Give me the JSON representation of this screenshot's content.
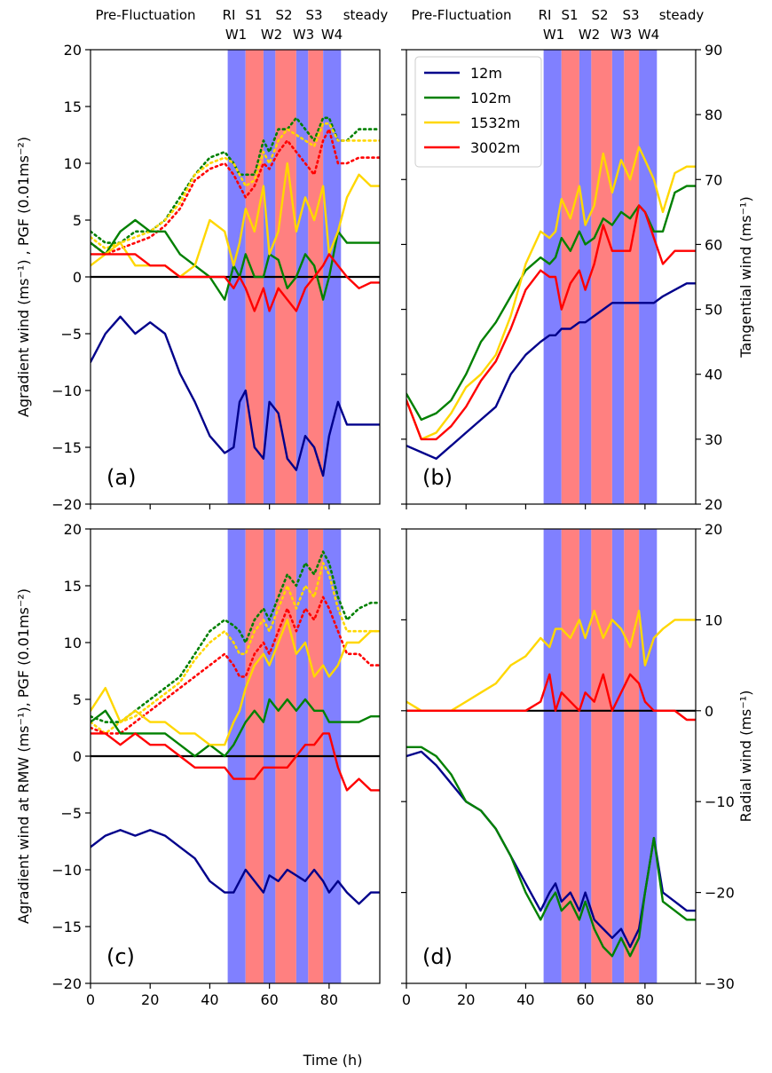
{
  "colors": {
    "12m": "#00008b",
    "102m": "#008000",
    "1532m": "#ffd700",
    "3002m": "#ff0000",
    "wind_band": "#8080ff",
    "strong_band": "#ff8080"
  },
  "chart_data": {
    "type": "line",
    "xlabel": "Time (h)",
    "xlim": [
      0,
      97
    ],
    "xticks": [
      0,
      20,
      40,
      60,
      80
    ],
    "legend": {
      "placement": "top-left of panel (b)",
      "entries": [
        "12m",
        "102m",
        "1532m",
        "3002m"
      ]
    },
    "phase_labels_top": [
      "Pre-Fluctuation",
      "RI",
      "S1",
      "S2",
      "S3",
      "steady"
    ],
    "phase_labels_bottom": [
      "W1",
      "W2",
      "W3",
      "W4"
    ],
    "bands": [
      {
        "from": 46,
        "to": 52,
        "kind": "W"
      },
      {
        "from": 52,
        "to": 58,
        "kind": "S"
      },
      {
        "from": 58,
        "to": 62,
        "kind": "W"
      },
      {
        "from": 62,
        "to": 69,
        "kind": "S"
      },
      {
        "from": 69,
        "to": 73,
        "kind": "W"
      },
      {
        "from": 73,
        "to": 78,
        "kind": "S"
      },
      {
        "from": 78,
        "to": 84,
        "kind": "W"
      }
    ],
    "panels": [
      {
        "id": "a",
        "tag": "(a)",
        "ylabel": "Agradient wind (ms⁻¹) , PGF (0.01ms⁻²)",
        "ylim": [
          -20,
          20
        ],
        "yticks": [
          -20,
          -15,
          -10,
          -5,
          0,
          5,
          10,
          15,
          20
        ],
        "yaxis_side": "left",
        "zero_line": true,
        "x": [
          0,
          5,
          10,
          15,
          20,
          25,
          30,
          35,
          40,
          45,
          48,
          50,
          52,
          55,
          58,
          60,
          63,
          66,
          69,
          72,
          75,
          78,
          80,
          83,
          86,
          90,
          94,
          97
        ],
        "series": [
          {
            "name": "12m",
            "style": "solid",
            "values": [
              -7.5,
              -5,
              -3.5,
              -5,
              -4,
              -5,
              -8.5,
              -11,
              -14,
              -15.5,
              -15,
              -11,
              -10,
              -15,
              -16,
              -11,
              -12,
              -16,
              -17,
              -14,
              -15,
              -17.5,
              -14,
              -11,
              -13,
              -13,
              -13,
              -13
            ]
          },
          {
            "name": "102m",
            "style": "solid",
            "values": [
              3,
              2,
              4,
              5,
              4,
              4,
              2,
              1,
              0,
              -2,
              1,
              0,
              2,
              0,
              0,
              2,
              1.5,
              -1,
              0,
              2,
              1,
              -2,
              0,
              4,
              3,
              3,
              3,
              3
            ]
          },
          {
            "name": "1532m",
            "style": "solid",
            "values": [
              1,
              2,
              3,
              1,
              1,
              1,
              0,
              1,
              5,
              4,
              1,
              3,
              6,
              4,
              8,
              2,
              4,
              10,
              4,
              7,
              5,
              8,
              2,
              4,
              7,
              9,
              8,
              8
            ]
          },
          {
            "name": "3002m",
            "style": "solid",
            "values": [
              2,
              2,
              2,
              2,
              1,
              1,
              0,
              0,
              0,
              0,
              -1,
              0,
              -1,
              -3,
              -1,
              -3,
              -1,
              -2,
              -3,
              -1,
              0,
              1,
              2,
              1,
              0,
              -1,
              -0.5,
              -0.5
            ]
          },
          {
            "name": "102m",
            "style": "dotted",
            "values": [
              4,
              3,
              3,
              4,
              4,
              5,
              7,
              9,
              10.5,
              11,
              10,
              9,
              9,
              9,
              12,
              11,
              13,
              13,
              14,
              13,
              12,
              14,
              14,
              12,
              12,
              13,
              13,
              13
            ]
          },
          {
            "name": "1532m",
            "style": "dotted",
            "values": [
              3.5,
              2.5,
              3,
              3.5,
              4,
              5,
              6.5,
              9,
              10,
              10.5,
              10,
              9,
              8,
              8.5,
              11,
              10,
              12,
              13,
              12.5,
              12,
              11.5,
              13.5,
              13.5,
              12,
              12,
              12,
              12,
              12
            ]
          },
          {
            "name": "3002m",
            "style": "dotted",
            "values": [
              3,
              2,
              2.5,
              3,
              3.5,
              4.5,
              6,
              8.5,
              9.5,
              10,
              9,
              8,
              7,
              8,
              10,
              9.5,
              11,
              12,
              11,
              10,
              9,
              12,
              13,
              10,
              10,
              10.5,
              10.5,
              10.5
            ]
          }
        ]
      },
      {
        "id": "b",
        "tag": "(b)",
        "ylabel": "Tangential wind (ms⁻¹)",
        "ylim": [
          20,
          90
        ],
        "yticks": [
          20,
          30,
          40,
          50,
          60,
          70,
          80,
          90
        ],
        "yaxis_side": "right",
        "zero_line": false,
        "x": [
          0,
          5,
          10,
          15,
          20,
          25,
          30,
          35,
          40,
          45,
          48,
          50,
          52,
          55,
          58,
          60,
          63,
          66,
          69,
          72,
          75,
          78,
          80,
          83,
          86,
          90,
          94,
          97
        ],
        "series": [
          {
            "name": "12m",
            "style": "solid",
            "values": [
              29,
              28,
              27,
              29,
              31,
              33,
              35,
              40,
              43,
              45,
              46,
              46,
              47,
              47,
              48,
              48,
              49,
              50,
              51,
              51,
              51,
              51,
              51,
              51,
              52,
              53,
              54,
              54
            ]
          },
          {
            "name": "102m",
            "style": "solid",
            "values": [
              37,
              33,
              34,
              36,
              40,
              45,
              48,
              52,
              56,
              58,
              57,
              58,
              61,
              59,
              62,
              60,
              61,
              64,
              63,
              65,
              64,
              66,
              65,
              62,
              62,
              68,
              69,
              69
            ]
          },
          {
            "name": "1532m",
            "style": "solid",
            "values": [
              36,
              30,
              31,
              34,
              38,
              40,
              43,
              49,
              57,
              62,
              61,
              62,
              67,
              64,
              69,
              63,
              66,
              74,
              68,
              73,
              70,
              75,
              73,
              70,
              65,
              71,
              72,
              72
            ]
          },
          {
            "name": "3002m",
            "style": "solid",
            "values": [
              36,
              30,
              30,
              32,
              35,
              39,
              42,
              47,
              53,
              56,
              55,
              55,
              50,
              54,
              56,
              53,
              57,
              63,
              59,
              59,
              59,
              66,
              65,
              61,
              57,
              59,
              59,
              59
            ]
          }
        ]
      },
      {
        "id": "c",
        "tag": "(c)",
        "ylabel": "Agradient wind at RMW (ms⁻¹),  PGF (0.01ms⁻²)",
        "ylim": [
          -20,
          20
        ],
        "yticks": [
          -20,
          -15,
          -10,
          -5,
          0,
          5,
          10,
          15,
          20
        ],
        "yaxis_side": "left",
        "zero_line": true,
        "x": [
          0,
          5,
          10,
          15,
          20,
          25,
          30,
          35,
          40,
          45,
          48,
          50,
          52,
          55,
          58,
          60,
          63,
          66,
          69,
          72,
          75,
          78,
          80,
          83,
          86,
          90,
          94,
          97
        ],
        "series": [
          {
            "name": "12m",
            "style": "solid",
            "values": [
              -8,
              -7,
              -6.5,
              -7,
              -6.5,
              -7,
              -8,
              -9,
              -11,
              -12,
              -12,
              -11,
              -10,
              -11,
              -12,
              -10.5,
              -11,
              -10,
              -10.5,
              -11,
              -10,
              -11,
              -12,
              -11,
              -12,
              -13,
              -12,
              -12
            ]
          },
          {
            "name": "102m",
            "style": "solid",
            "values": [
              3,
              4,
              2,
              2,
              2,
              2,
              1,
              0,
              1,
              0,
              1,
              2,
              3,
              4,
              3,
              5,
              4,
              5,
              4,
              5,
              4,
              4,
              3,
              3,
              3,
              3,
              3.5,
              3.5
            ]
          },
          {
            "name": "1532m",
            "style": "solid",
            "values": [
              4,
              6,
              3,
              4,
              3,
              3,
              2,
              2,
              1,
              1,
              3,
              4,
              6,
              8,
              9,
              8,
              10,
              12,
              9,
              10,
              7,
              8,
              7,
              8,
              10,
              10,
              11,
              11
            ]
          },
          {
            "name": "3002m",
            "style": "solid",
            "values": [
              2,
              2,
              1,
              2,
              1,
              1,
              0,
              -1,
              -1,
              -1,
              -2,
              -2,
              -2,
              -2,
              -1,
              -1,
              -1,
              -1,
              0,
              1,
              1,
              2,
              2,
              -1,
              -3,
              -2,
              -3,
              -3
            ]
          },
          {
            "name": "102m",
            "style": "dotted",
            "values": [
              3.5,
              3,
              3,
              4,
              5,
              6,
              7,
              9,
              11,
              12,
              11.5,
              11,
              10,
              12,
              13,
              12,
              14,
              16,
              15,
              17,
              16,
              18,
              17,
              14,
              12,
              13,
              13.5,
              13.5
            ]
          },
          {
            "name": "1532m",
            "style": "dotted",
            "values": [
              3,
              2,
              3,
              3.5,
              4.5,
              5.5,
              6.5,
              8.5,
              10,
              11,
              10,
              9,
              9,
              11,
              12,
              11,
              13,
              15,
              13,
              15,
              14,
              17,
              16,
              13,
              11,
              11,
              11,
              11
            ]
          },
          {
            "name": "3002m",
            "style": "dotted",
            "values": [
              2.5,
              2,
              2,
              3,
              4,
              5,
              6,
              7,
              8,
              9,
              8,
              7,
              7,
              9,
              10,
              9,
              11,
              13,
              11,
              13,
              12,
              14,
              13,
              11,
              9,
              9,
              8,
              8
            ]
          }
        ]
      },
      {
        "id": "d",
        "tag": "(d)",
        "ylabel": "Radial wind (ms⁻¹)",
        "ylim": [
          -30,
          20
        ],
        "yticks": [
          -30,
          -20,
          -10,
          0,
          10,
          20
        ],
        "yaxis_side": "right",
        "zero_line": true,
        "x": [
          0,
          5,
          10,
          15,
          20,
          25,
          30,
          35,
          40,
          45,
          48,
          50,
          52,
          55,
          58,
          60,
          63,
          66,
          69,
          72,
          75,
          78,
          80,
          83,
          86,
          90,
          94,
          97
        ],
        "series": [
          {
            "name": "12m",
            "style": "solid",
            "values": [
              -5,
              -4.5,
              -6,
              -8,
              -10,
              -11,
              -13,
              -16,
              -19,
              -22,
              -20,
              -19,
              -21,
              -20,
              -22,
              -20,
              -23,
              -24,
              -25,
              -24,
              -26,
              -24,
              -20,
              -14,
              -20,
              -21,
              -22,
              -22
            ]
          },
          {
            "name": "102m",
            "style": "solid",
            "values": [
              -4,
              -4,
              -5,
              -7,
              -10,
              -11,
              -13,
              -16,
              -20,
              -23,
              -21,
              -20,
              -22,
              -21,
              -23,
              -21,
              -24,
              -26,
              -27,
              -25,
              -27,
              -25,
              -20,
              -14,
              -21,
              -22,
              -23,
              -23
            ]
          },
          {
            "name": "1532m",
            "style": "solid",
            "values": [
              1,
              0,
              0,
              0,
              1,
              2,
              3,
              5,
              6,
              8,
              7,
              9,
              9,
              8,
              10,
              8,
              11,
              8,
              10,
              9,
              7,
              11,
              5,
              8,
              9,
              10,
              10,
              10
            ]
          },
          {
            "name": "3002m",
            "style": "solid",
            "values": [
              0,
              0,
              0,
              0,
              0,
              0,
              0,
              0,
              0,
              1,
              4,
              0,
              2,
              1,
              0,
              2,
              1,
              4,
              0,
              2,
              4,
              3,
              1,
              0,
              0,
              0,
              -1,
              -1
            ]
          }
        ]
      }
    ]
  }
}
